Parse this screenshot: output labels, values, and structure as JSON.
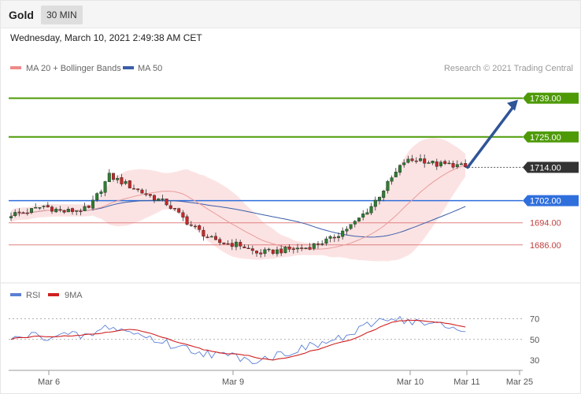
{
  "header": {
    "title": "Gold",
    "interval": "30 MIN",
    "datetime": "Wednesday, March 10, 2021 2:49:38 AM CET"
  },
  "colors": {
    "up_candle": "#2e7d32",
    "down_candle": "#c62828",
    "bollinger_fill": "#fcdede",
    "ma20": "#e89c9c",
    "ma50": "#3b5ea8",
    "resistance": "#4d9a06",
    "pivot": "#2f6fdc",
    "support": "#e08080",
    "arrow": "#2f5597",
    "rsi": "#5b7fd6",
    "rsi_ma": "#d02020"
  },
  "chart_data": [
    {
      "type": "candlestick",
      "legend": [
        "MA 20 + Bollinger Bands",
        "MA 50"
      ],
      "legend_position": "top-left",
      "credit": "Research © 2021 Trading Central",
      "ylim": [
        1672,
        1746
      ],
      "x_ticks": [
        "Mar 6",
        "Mar 9",
        "Mar 10",
        "Mar 11",
        "Mar 25"
      ],
      "levels": [
        {
          "value": 1739.0,
          "label": "1739.00",
          "kind": "resistance"
        },
        {
          "value": 1725.0,
          "label": "1725.00",
          "kind": "resistance"
        },
        {
          "value": 1714.0,
          "label": "1714.00",
          "kind": "last"
        },
        {
          "value": 1702.0,
          "label": "1702.00",
          "kind": "pivot"
        },
        {
          "value": 1694.0,
          "label": "1694.00",
          "kind": "support"
        },
        {
          "value": 1686.0,
          "label": "1686.00",
          "kind": "support"
        }
      ],
      "projection": {
        "from": 1714.0,
        "to": 1739.0
      },
      "key_points": [
        [
          0,
          1697
        ],
        [
          4,
          1698
        ],
        [
          8,
          1700
        ],
        [
          13,
          1698
        ],
        [
          19,
          1699
        ],
        [
          24,
          1711
        ],
        [
          28,
          1708
        ],
        [
          32,
          1705
        ],
        [
          38,
          1701
        ],
        [
          44,
          1693
        ],
        [
          50,
          1687
        ],
        [
          56,
          1686
        ],
        [
          60,
          1683
        ],
        [
          66,
          1684
        ],
        [
          72,
          1685
        ],
        [
          78,
          1688
        ],
        [
          84,
          1694
        ],
        [
          88,
          1700
        ],
        [
          92,
          1708
        ],
        [
          96,
          1716
        ],
        [
          100,
          1717
        ],
        [
          104,
          1715
        ],
        [
          108,
          1715
        ],
        [
          111,
          1714
        ]
      ]
    },
    {
      "type": "line",
      "series": [
        {
          "name": "RSI",
          "role": "rsi"
        },
        {
          "name": "9MA",
          "role": "ma"
        }
      ],
      "legend_position": "top-left",
      "ylim": [
        20,
        85
      ],
      "y_ticks": [
        70,
        50,
        30
      ],
      "reference_lines": [
        70,
        50
      ],
      "key_points": [
        [
          0,
          49
        ],
        [
          4,
          54
        ],
        [
          8,
          53
        ],
        [
          13,
          54
        ],
        [
          19,
          53
        ],
        [
          24,
          63
        ],
        [
          28,
          58
        ],
        [
          32,
          54
        ],
        [
          38,
          46
        ],
        [
          44,
          40
        ],
        [
          50,
          35
        ],
        [
          56,
          33
        ],
        [
          60,
          30
        ],
        [
          66,
          36
        ],
        [
          72,
          42
        ],
        [
          78,
          48
        ],
        [
          84,
          56
        ],
        [
          88,
          65
        ],
        [
          92,
          72
        ],
        [
          96,
          69
        ],
        [
          100,
          66
        ],
        [
          104,
          64
        ],
        [
          108,
          60
        ],
        [
          111,
          58
        ]
      ]
    }
  ]
}
